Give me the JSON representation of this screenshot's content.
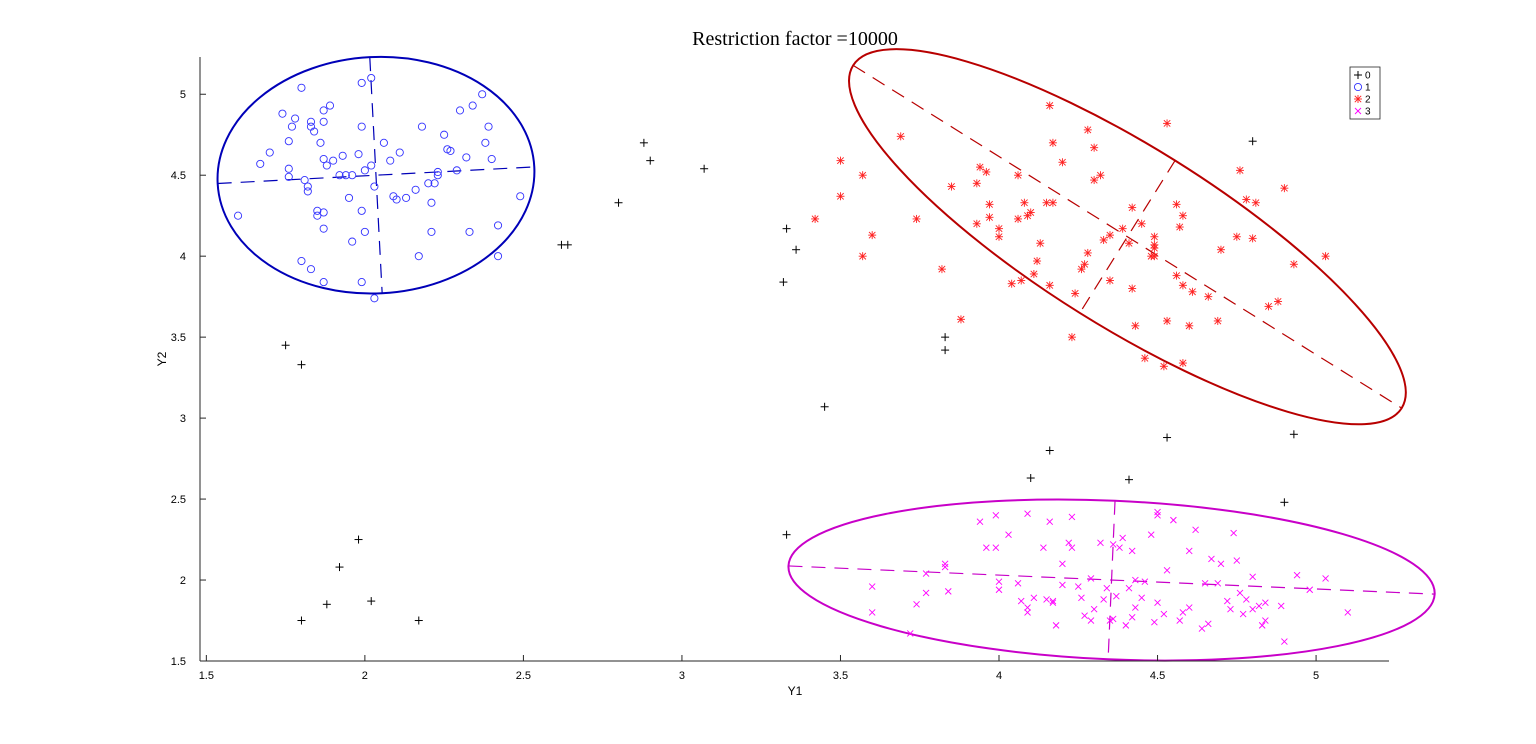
{
  "chart_data": {
    "type": "scatter",
    "title": "Restriction factor =10000",
    "xlabel": "Y1",
    "ylabel": "Y2",
    "xlim": [
      1.48,
      5.23
    ],
    "ylim": [
      1.5,
      5.23
    ],
    "xticks": [
      "1.5",
      "2",
      "2.5",
      "3",
      "3.5",
      "4",
      "4.5",
      "5"
    ],
    "yticks": [
      "1.5",
      "2",
      "2.5",
      "3",
      "3.5",
      "4",
      "4.5",
      "5"
    ],
    "grid": false,
    "legend_position": "top-right",
    "series": [
      {
        "name": "0",
        "marker": "plus",
        "color": "#000000",
        "points": [
          [
            1.75,
            3.45
          ],
          [
            1.8,
            3.33
          ],
          [
            1.8,
            1.75
          ],
          [
            1.88,
            1.85
          ],
          [
            1.92,
            2.08
          ],
          [
            1.98,
            2.25
          ],
          [
            2.02,
            1.87
          ],
          [
            2.17,
            1.75
          ],
          [
            2.62,
            4.07
          ],
          [
            2.64,
            4.07
          ],
          [
            2.8,
            4.33
          ],
          [
            2.88,
            4.7
          ],
          [
            2.9,
            4.59
          ],
          [
            3.07,
            4.54
          ],
          [
            3.32,
            3.84
          ],
          [
            3.33,
            4.17
          ],
          [
            3.36,
            4.04
          ],
          [
            3.33,
            2.28
          ],
          [
            3.45,
            3.07
          ],
          [
            3.83,
            3.5
          ],
          [
            3.83,
            3.42
          ],
          [
            4.1,
            2.63
          ],
          [
            4.16,
            2.8
          ],
          [
            4.41,
            2.62
          ],
          [
            4.53,
            2.88
          ],
          [
            4.8,
            4.71
          ],
          [
            4.9,
            2.48
          ],
          [
            4.93,
            2.9
          ]
        ]
      },
      {
        "name": "1",
        "marker": "circle",
        "color": "#3333ff",
        "points": [
          [
            1.6,
            4.25
          ],
          [
            1.67,
            4.57
          ],
          [
            1.7,
            4.64
          ],
          [
            1.74,
            4.88
          ],
          [
            1.76,
            4.71
          ],
          [
            1.77,
            4.8
          ],
          [
            1.76,
            4.54
          ],
          [
            1.76,
            4.49
          ],
          [
            1.78,
            4.85
          ],
          [
            1.8,
            5.04
          ],
          [
            1.8,
            3.97
          ],
          [
            1.81,
            4.47
          ],
          [
            1.82,
            4.43
          ],
          [
            1.82,
            4.4
          ],
          [
            1.83,
            4.8
          ],
          [
            1.83,
            4.83
          ],
          [
            1.84,
            4.77
          ],
          [
            1.83,
            3.92
          ],
          [
            1.85,
            4.28
          ],
          [
            1.85,
            4.25
          ],
          [
            1.86,
            4.7
          ],
          [
            1.87,
            4.83
          ],
          [
            1.87,
            4.9
          ],
          [
            1.87,
            4.6
          ],
          [
            1.87,
            4.17
          ],
          [
            1.87,
            4.27
          ],
          [
            1.87,
            3.84
          ],
          [
            1.88,
            4.56
          ],
          [
            1.89,
            4.93
          ],
          [
            1.9,
            4.59
          ],
          [
            1.92,
            4.5
          ],
          [
            1.93,
            4.62
          ],
          [
            1.94,
            4.5
          ],
          [
            1.96,
            4.5
          ],
          [
            1.96,
            4.09
          ],
          [
            1.95,
            4.36
          ],
          [
            1.98,
            4.63
          ],
          [
            1.99,
            4.8
          ],
          [
            1.99,
            4.28
          ],
          [
            1.99,
            5.07
          ],
          [
            1.99,
            3.84
          ],
          [
            2.0,
            4.15
          ],
          [
            2.02,
            5.1
          ],
          [
            2.02,
            4.56
          ],
          [
            2.03,
            4.43
          ],
          [
            2.03,
            3.74
          ],
          [
            2.06,
            4.7
          ],
          [
            2.08,
            4.59
          ],
          [
            2.09,
            4.37
          ],
          [
            2.1,
            4.35
          ],
          [
            2.11,
            4.64
          ],
          [
            2.13,
            4.36
          ],
          [
            2.16,
            4.41
          ],
          [
            2.17,
            4.0
          ],
          [
            2.18,
            4.8
          ],
          [
            2.2,
            4.45
          ],
          [
            2.21,
            4.33
          ],
          [
            2.22,
            4.45
          ],
          [
            2.23,
            4.52
          ],
          [
            2.23,
            4.5
          ],
          [
            2.25,
            4.75
          ],
          [
            2.26,
            4.66
          ],
          [
            2.27,
            4.65
          ],
          [
            2.29,
            4.53
          ],
          [
            2.3,
            4.9
          ],
          [
            2.32,
            4.61
          ],
          [
            2.33,
            4.15
          ],
          [
            2.34,
            4.93
          ],
          [
            2.37,
            5.0
          ],
          [
            2.38,
            4.7
          ],
          [
            2.39,
            4.8
          ],
          [
            2.4,
            4.6
          ],
          [
            2.42,
            4.19
          ],
          [
            2.42,
            4.0
          ],
          [
            2.49,
            4.37
          ],
          [
            2.21,
            4.15
          ],
          [
            2.0,
            4.53
          ]
        ]
      },
      {
        "name": "2",
        "marker": "asterisk",
        "color": "#ff2020",
        "points": [
          [
            3.42,
            4.23
          ],
          [
            3.5,
            4.59
          ],
          [
            3.5,
            4.37
          ],
          [
            3.57,
            4.5
          ],
          [
            3.57,
            4.0
          ],
          [
            3.6,
            4.13
          ],
          [
            3.69,
            4.74
          ],
          [
            3.74,
            4.23
          ],
          [
            3.82,
            3.92
          ],
          [
            3.85,
            4.43
          ],
          [
            3.88,
            3.61
          ],
          [
            3.93,
            4.45
          ],
          [
            3.93,
            4.2
          ],
          [
            3.94,
            4.55
          ],
          [
            3.96,
            4.52
          ],
          [
            3.97,
            4.32
          ],
          [
            3.97,
            4.24
          ],
          [
            4.0,
            4.17
          ],
          [
            4.0,
            4.12
          ],
          [
            4.04,
            3.83
          ],
          [
            4.06,
            4.5
          ],
          [
            4.06,
            4.23
          ],
          [
            4.07,
            3.85
          ],
          [
            4.08,
            4.33
          ],
          [
            4.09,
            4.25
          ],
          [
            4.1,
            4.27
          ],
          [
            4.11,
            3.89
          ],
          [
            4.12,
            3.97
          ],
          [
            4.13,
            4.08
          ],
          [
            4.15,
            4.33
          ],
          [
            4.16,
            3.82
          ],
          [
            4.17,
            4.33
          ],
          [
            4.16,
            4.93
          ],
          [
            4.17,
            4.7
          ],
          [
            4.2,
            4.58
          ],
          [
            4.23,
            3.5
          ],
          [
            4.24,
            3.77
          ],
          [
            4.26,
            3.92
          ],
          [
            4.27,
            3.95
          ],
          [
            4.28,
            4.78
          ],
          [
            4.28,
            4.02
          ],
          [
            4.3,
            4.47
          ],
          [
            4.3,
            4.67
          ],
          [
            4.32,
            4.5
          ],
          [
            4.33,
            4.1
          ],
          [
            4.35,
            4.13
          ],
          [
            4.35,
            3.85
          ],
          [
            4.39,
            4.17
          ],
          [
            4.41,
            4.08
          ],
          [
            4.42,
            3.8
          ],
          [
            4.42,
            4.3
          ],
          [
            4.43,
            3.57
          ],
          [
            4.45,
            4.2
          ],
          [
            4.46,
            3.37
          ],
          [
            4.48,
            4.0
          ],
          [
            4.49,
            4.05
          ],
          [
            4.49,
            4.07
          ],
          [
            4.49,
            4.12
          ],
          [
            4.49,
            4.0
          ],
          [
            4.52,
            3.32
          ],
          [
            4.53,
            4.82
          ],
          [
            4.53,
            3.6
          ],
          [
            4.56,
            4.32
          ],
          [
            4.56,
            3.88
          ],
          [
            4.57,
            4.18
          ],
          [
            4.58,
            3.34
          ],
          [
            4.58,
            4.25
          ],
          [
            4.58,
            3.82
          ],
          [
            4.6,
            3.57
          ],
          [
            4.61,
            3.78
          ],
          [
            4.66,
            3.75
          ],
          [
            4.69,
            3.6
          ],
          [
            4.7,
            4.04
          ],
          [
            4.75,
            4.12
          ],
          [
            4.76,
            4.53
          ],
          [
            4.78,
            4.35
          ],
          [
            4.8,
            4.11
          ],
          [
            4.81,
            4.33
          ],
          [
            4.85,
            3.69
          ],
          [
            4.88,
            3.72
          ],
          [
            4.9,
            4.42
          ],
          [
            4.93,
            3.95
          ],
          [
            5.03,
            4.0
          ]
        ]
      },
      {
        "name": "3",
        "marker": "cross",
        "color": "#ff00ff",
        "points": [
          [
            3.6,
            1.96
          ],
          [
            3.6,
            1.8
          ],
          [
            3.72,
            1.67
          ],
          [
            3.74,
            1.85
          ],
          [
            3.77,
            1.92
          ],
          [
            3.77,
            2.04
          ],
          [
            3.83,
            2.08
          ],
          [
            3.83,
            2.1
          ],
          [
            3.84,
            1.93
          ],
          [
            3.94,
            2.36
          ],
          [
            3.96,
            2.2
          ],
          [
            3.99,
            2.2
          ],
          [
            3.99,
            2.4
          ],
          [
            4.0,
            1.99
          ],
          [
            4.0,
            1.94
          ],
          [
            4.03,
            2.28
          ],
          [
            4.06,
            1.98
          ],
          [
            4.07,
            1.87
          ],
          [
            4.09,
            1.83
          ],
          [
            4.09,
            1.8
          ],
          [
            4.09,
            2.41
          ],
          [
            4.11,
            1.89
          ],
          [
            4.14,
            2.2
          ],
          [
            4.15,
            1.88
          ],
          [
            4.16,
            2.36
          ],
          [
            4.17,
            1.86
          ],
          [
            4.17,
            1.87
          ],
          [
            4.18,
            1.72
          ],
          [
            4.2,
            2.1
          ],
          [
            4.2,
            1.97
          ],
          [
            4.22,
            2.23
          ],
          [
            4.23,
            2.2
          ],
          [
            4.23,
            2.39
          ],
          [
            4.25,
            1.96
          ],
          [
            4.26,
            1.89
          ],
          [
            4.27,
            1.78
          ],
          [
            4.29,
            2.01
          ],
          [
            4.29,
            1.75
          ],
          [
            4.3,
            1.82
          ],
          [
            4.32,
            2.23
          ],
          [
            4.33,
            1.88
          ],
          [
            4.34,
            1.95
          ],
          [
            4.35,
            1.75
          ],
          [
            4.36,
            1.76
          ],
          [
            4.36,
            2.22
          ],
          [
            4.37,
            1.9
          ],
          [
            4.38,
            2.2
          ],
          [
            4.39,
            2.26
          ],
          [
            4.4,
            1.72
          ],
          [
            4.41,
            1.95
          ],
          [
            4.42,
            1.77
          ],
          [
            4.42,
            2.18
          ],
          [
            4.43,
            1.83
          ],
          [
            4.45,
            1.89
          ],
          [
            4.46,
            1.99
          ],
          [
            4.48,
            2.28
          ],
          [
            4.49,
            1.74
          ],
          [
            4.5,
            2.4
          ],
          [
            4.5,
            2.42
          ],
          [
            4.52,
            1.79
          ],
          [
            4.53,
            2.06
          ],
          [
            4.55,
            2.37
          ],
          [
            4.57,
            1.75
          ],
          [
            4.58,
            1.8
          ],
          [
            4.6,
            1.83
          ],
          [
            4.6,
            2.18
          ],
          [
            4.62,
            2.31
          ],
          [
            4.64,
            1.7
          ],
          [
            4.65,
            1.98
          ],
          [
            4.66,
            1.73
          ],
          [
            4.67,
            2.13
          ],
          [
            4.69,
            1.98
          ],
          [
            4.7,
            2.1
          ],
          [
            4.72,
            1.87
          ],
          [
            4.73,
            1.82
          ],
          [
            4.74,
            2.29
          ],
          [
            4.76,
            1.92
          ],
          [
            4.77,
            1.79
          ],
          [
            4.78,
            1.88
          ],
          [
            4.8,
            1.82
          ],
          [
            4.8,
            2.02
          ],
          [
            4.82,
            1.84
          ],
          [
            4.83,
            1.72
          ],
          [
            4.84,
            1.86
          ],
          [
            4.84,
            1.75
          ],
          [
            4.89,
            1.84
          ],
          [
            4.9,
            1.62
          ],
          [
            4.94,
            2.03
          ],
          [
            4.98,
            1.94
          ],
          [
            5.03,
            2.01
          ],
          [
            5.1,
            1.8
          ],
          [
            4.75,
            2.12
          ],
          [
            4.5,
            1.86
          ],
          [
            4.43,
            2.0
          ]
        ]
      }
    ],
    "ellipses": [
      {
        "series": "1",
        "color": "#0000b8",
        "center": [
          2.035,
          4.5
        ],
        "semi_major": 0.5,
        "semi_minor": 0.73,
        "angle_deg": 3
      },
      {
        "series": "2",
        "color": "#b80000",
        "center": [
          4.405,
          4.12
        ],
        "semi_major": 1.02,
        "semi_minor": 0.555,
        "angle_deg": -32
      },
      {
        "series": "3",
        "color": "#c800c8",
        "center": [
          4.355,
          2.0
        ],
        "semi_major": 1.02,
        "semi_minor": 0.49,
        "angle_deg": -2.5
      }
    ]
  }
}
